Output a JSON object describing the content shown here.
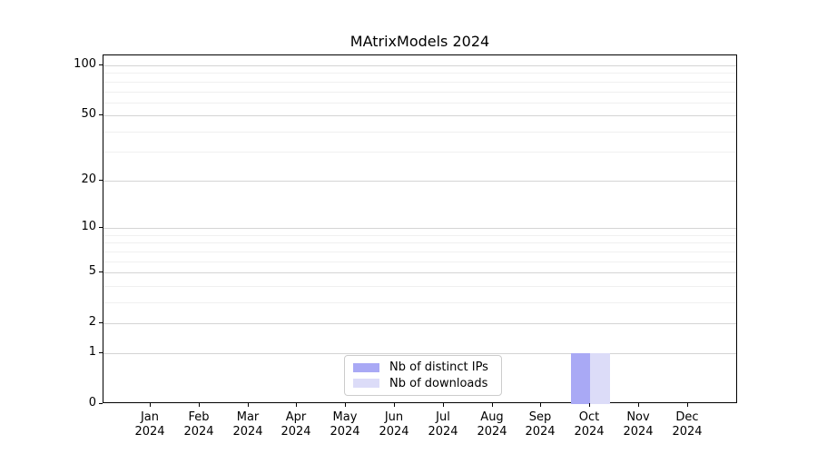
{
  "chart_data": {
    "type": "bar",
    "title": "MAtrixModels 2024",
    "y_scale": "log1p",
    "ylim": [
      0,
      115
    ],
    "grid": "both",
    "y_ticks": [
      100,
      50,
      20,
      10,
      5,
      2,
      1,
      0
    ],
    "y_minor_gridlines": [
      90,
      80,
      70,
      60,
      40,
      30,
      9,
      8,
      7,
      6,
      4,
      3
    ],
    "categories": [
      "Jan 2024",
      "Feb 2024",
      "Mar 2024",
      "Apr 2024",
      "May 2024",
      "Jun 2024",
      "Jul 2024",
      "Aug 2024",
      "Sep 2024",
      "Oct 2024",
      "Nov 2024",
      "Dec 2024"
    ],
    "x_months": [
      "Jan",
      "Feb",
      "Mar",
      "Apr",
      "May",
      "Jun",
      "Jul",
      "Aug",
      "Sep",
      "Oct",
      "Nov",
      "Dec"
    ],
    "x_year": "2024",
    "series": [
      {
        "name": "Nb of distinct IPs",
        "color": "#a9a9f5",
        "values": [
          0,
          0,
          0,
          0,
          0,
          0,
          0,
          0,
          0,
          1,
          0,
          0
        ]
      },
      {
        "name": "Nb of downloads",
        "color": "#dcdcf8",
        "values": [
          0,
          0,
          0,
          0,
          0,
          0,
          0,
          0,
          0,
          1,
          0,
          0
        ]
      }
    ],
    "legend": {
      "position": "lower center",
      "entries": [
        "Nb of distinct IPs",
        "Nb of downloads"
      ]
    }
  },
  "colors": {
    "axis": "#000000",
    "grid_major": "#d4d4d4",
    "grid_minor": "#f0f0f0",
    "background": "#ffffff"
  }
}
